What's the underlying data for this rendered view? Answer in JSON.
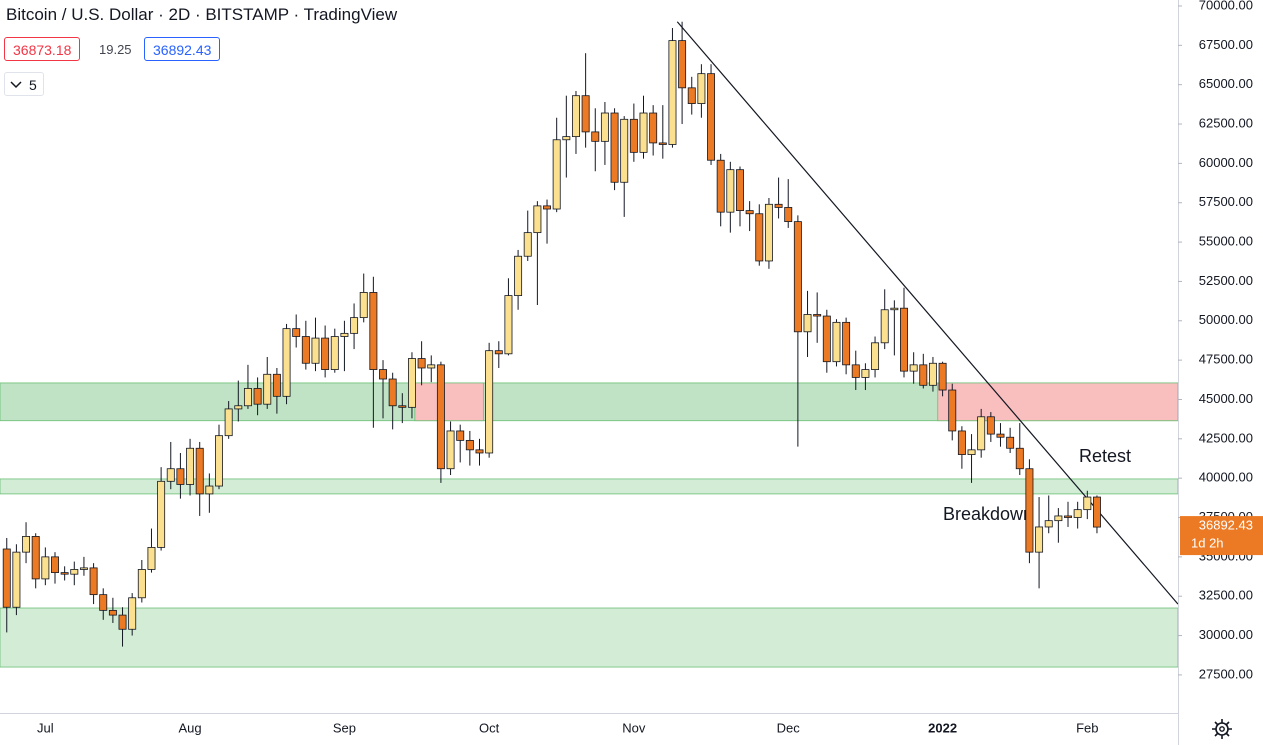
{
  "chart_data": {
    "type": "candlestick",
    "title": "Bitcoin / U.S. Dollar · 2D · BITSTAMP · TradingView",
    "bid": 36873.18,
    "spread": 19.25,
    "ask": 36892.43,
    "indicators": 5,
    "countdown": "1d 2h",
    "up_color": "#fbe08f",
    "down_color": "#ec7a24",
    "categories": [
      null,
      null,
      null,
      null,
      "Jul",
      null,
      null,
      null,
      null,
      null,
      null,
      null,
      null,
      null,
      null,
      null,
      null,
      null,
      null,
      "Aug",
      null,
      null,
      null,
      null,
      null,
      null,
      null,
      null,
      null,
      null,
      null,
      null,
      null,
      null,
      null,
      "Sep",
      null,
      null,
      null,
      null,
      null,
      null,
      null,
      null,
      null,
      null,
      null,
      null,
      null,
      null,
      "Oct",
      null,
      null,
      null,
      null,
      null,
      null,
      null,
      null,
      null,
      null,
      null,
      null,
      null,
      null,
      "Nov",
      null,
      null,
      null,
      null,
      null,
      null,
      null,
      null,
      null,
      null,
      null,
      null,
      null,
      null,
      null,
      "Dec",
      null,
      null,
      null,
      null,
      null,
      null,
      null,
      null,
      null,
      null,
      null,
      null,
      null,
      null,
      null,
      "2022",
      null,
      null,
      null,
      null,
      null,
      null,
      null,
      null,
      null,
      null,
      null,
      null,
      null,
      null,
      "Feb",
      null
    ],
    "open": [
      35500,
      31800,
      35300,
      36300,
      33600,
      35000,
      34000,
      33900,
      34200,
      34300,
      32600,
      31600,
      31300,
      30400,
      32400,
      34200,
      35600,
      39800,
      40600,
      39600,
      41900,
      39000,
      39500,
      42700,
      44400,
      44600,
      45700,
      44700,
      46600,
      45200,
      49500,
      49000,
      47300,
      48900,
      46900,
      49000,
      49200,
      50200,
      51800,
      46900,
      46300,
      44600,
      44500,
      47600,
      47000,
      47200,
      40600,
      43000,
      42400,
      41800,
      41600,
      48100,
      47900,
      51600,
      54100,
      55600,
      57300,
      57100,
      61500,
      61700,
      64300,
      62000,
      61400,
      63200,
      58800,
      62800,
      60700,
      63200,
      61300,
      61200,
      67800,
      64800,
      63800,
      65700,
      60200,
      56900,
      59600,
      57000,
      56800,
      53800,
      57400,
      57200,
      56300,
      49300,
      50400,
      50300,
      47400,
      49900,
      47200,
      46400,
      46900,
      48600,
      50700,
      50800,
      46800,
      47200,
      45900,
      47300,
      45600,
      43000,
      41500,
      41800,
      43900,
      42800,
      42600,
      41900,
      40600,
      35300,
      36900,
      37300,
      37600,
      37500,
      38000,
      38800
    ],
    "high": [
      36200,
      35800,
      37200,
      36500,
      35600,
      35300,
      34400,
      34700,
      35000,
      34600,
      33000,
      32400,
      31800,
      32700,
      34800,
      36800,
      40700,
      42300,
      41600,
      42500,
      42300,
      40300,
      43400,
      44900,
      46200,
      47200,
      46400,
      47700,
      47000,
      49800,
      50400,
      50000,
      50200,
      49700,
      49500,
      50000,
      51100,
      53000,
      52800,
      47500,
      46700,
      45400,
      48000,
      48700,
      47800,
      47400,
      43600,
      43400,
      43000,
      42500,
      48600,
      48700,
      52700,
      54500,
      57000,
      57600,
      57700,
      62900,
      64300,
      64600,
      67000,
      63500,
      63900,
      63500,
      63000,
      63800,
      64300,
      63700,
      63700,
      68600,
      69000,
      65500,
      66300,
      66300,
      60600,
      60100,
      59800,
      57600,
      57400,
      57800,
      59100,
      59000,
      56700,
      51900,
      51800,
      50700,
      50100,
      50200,
      48100,
      47300,
      49000,
      52000,
      51300,
      52100,
      48000,
      47900,
      47700,
      47400,
      46000,
      43300,
      42800,
      44400,
      44200,
      43500,
      43200,
      43500,
      41200,
      38800,
      38900,
      38100,
      38500,
      38500,
      39200,
      38900
    ],
    "low": [
      30200,
      31300,
      34600,
      33000,
      33200,
      33300,
      33500,
      33200,
      33800,
      32000,
      31000,
      30800,
      29300,
      30000,
      32100,
      34000,
      35400,
      39300,
      38700,
      38900,
      37600,
      37800,
      39300,
      42500,
      43600,
      44400,
      44000,
      44400,
      44100,
      44700,
      48300,
      46900,
      46800,
      46400,
      46700,
      46800,
      48200,
      49900,
      43200,
      43800,
      43100,
      43500,
      43800,
      45900,
      46100,
      39700,
      40200,
      41000,
      40800,
      40800,
      41300,
      47000,
      47800,
      50700,
      53800,
      51000,
      54900,
      56900,
      59100,
      60600,
      61000,
      59500,
      59900,
      58300,
      56600,
      60100,
      60300,
      60500,
      60300,
      61000,
      62500,
      63100,
      62900,
      59900,
      56000,
      55600,
      56000,
      55700,
      53500,
      53300,
      56500,
      55900,
      42000,
      47700,
      48600,
      46700,
      47100,
      46600,
      45600,
      45600,
      46400,
      48200,
      47800,
      46400,
      46000,
      45700,
      45500,
      45200,
      42400,
      40600,
      39700,
      41300,
      42300,
      42000,
      41600,
      40200,
      34600,
      33000,
      36500,
      35900,
      36900,
      36800,
      37400,
      36500
    ],
    "close": [
      31800,
      35300,
      36300,
      33600,
      35000,
      34000,
      33900,
      34200,
      34300,
      32600,
      31600,
      31300,
      30400,
      32400,
      34200,
      35600,
      39800,
      40600,
      39600,
      41900,
      39000,
      39500,
      42700,
      44400,
      44600,
      45700,
      44700,
      46600,
      45200,
      49500,
      49000,
      47300,
      48900,
      46900,
      49000,
      49200,
      50200,
      51800,
      46900,
      46300,
      44600,
      44500,
      47600,
      47000,
      47200,
      40600,
      43000,
      42400,
      41800,
      41600,
      48100,
      47900,
      51600,
      54100,
      55600,
      57300,
      57100,
      61500,
      61700,
      64300,
      62000,
      61400,
      63200,
      58800,
      62800,
      60700,
      63200,
      61300,
      61200,
      67800,
      64800,
      63800,
      65700,
      60200,
      56900,
      59600,
      57000,
      56800,
      53800,
      57400,
      57200,
      56300,
      49300,
      50400,
      50300,
      47400,
      49900,
      47200,
      46400,
      46900,
      48600,
      50700,
      50800,
      46800,
      47200,
      45900,
      47300,
      45600,
      43000,
      41500,
      41800,
      43900,
      42800,
      42600,
      41900,
      40600,
      35300,
      36900,
      37300,
      37600,
      37500,
      38000,
      38800,
      36892.43
    ],
    "xlim": [
      -0.7,
      121.4
    ],
    "ylim": [
      25080,
      70380
    ],
    "yticks": [
      {
        "value": 27500,
        "label": "27500.00"
      },
      {
        "value": 30000,
        "label": "30000.00"
      },
      {
        "value": 32500,
        "label": "32500.00"
      },
      {
        "value": 35000,
        "label": "35000.00"
      },
      {
        "value": 37500,
        "label": "37500.00"
      },
      {
        "value": 40000,
        "label": "40000.00"
      },
      {
        "value": 42500,
        "label": "42500.00"
      },
      {
        "value": 45000,
        "label": "45000.00"
      },
      {
        "value": 47500,
        "label": "47500.00"
      },
      {
        "value": 50000,
        "label": "50000.00"
      },
      {
        "value": 52500,
        "label": "52500.00"
      },
      {
        "value": 55000,
        "label": "55000.00"
      },
      {
        "value": 57500,
        "label": "57500.00"
      },
      {
        "value": 60000,
        "label": "60000.00"
      },
      {
        "value": 62500,
        "label": "62500.00"
      },
      {
        "value": 65000,
        "label": "65000.00"
      },
      {
        "value": 67500,
        "label": "67500.00"
      },
      {
        "value": 70000,
        "label": "70000.00"
      }
    ],
    "zones": [
      {
        "low": 43650,
        "high": 46050,
        "color": "#bfe3c4",
        "from": -0.7,
        "to": 121.4
      },
      {
        "low": 39000,
        "high": 39950,
        "color": "#d3ecd6",
        "from": -0.7,
        "to": 121.4
      },
      {
        "low": 28000,
        "high": 31750,
        "color": "#d3ecd6",
        "from": -0.7,
        "to": 121.4
      },
      {
        "low": 43650,
        "high": 46050,
        "color": "#f9bfbf",
        "from": 42.3,
        "to": 49.4
      },
      {
        "low": 43650,
        "high": 46050,
        "color": "#f9bfbf",
        "from": 96.5,
        "to": 121.4
      }
    ],
    "trendline": {
      "x": [
        69.5,
        121.4
      ],
      "y": [
        69000,
        32000
      ],
      "color": "#131722"
    },
    "annotations": [
      "Retest",
      "Breakdown"
    ]
  }
}
